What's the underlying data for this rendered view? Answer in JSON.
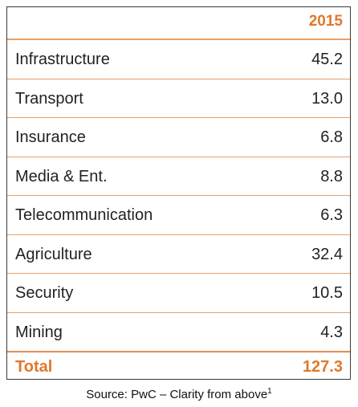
{
  "chart_data": {
    "type": "table",
    "header": {
      "label": "",
      "year": "2015"
    },
    "rows": [
      {
        "label": "Infrastructure",
        "value": "45.2"
      },
      {
        "label": "Transport",
        "value": "13.0"
      },
      {
        "label": "Insurance",
        "value": "6.8"
      },
      {
        "label": "Media & Ent.",
        "value": "8.8"
      },
      {
        "label": "Telecommunication",
        "value": "6.3"
      },
      {
        "label": "Agriculture",
        "value": "32.4"
      },
      {
        "label": "Security",
        "value": "10.5"
      },
      {
        "label": "Mining",
        "value": "4.3"
      }
    ],
    "total": {
      "label": "Total",
      "value": "127.3"
    },
    "colors": {
      "accent": "#e0782b",
      "rule": "#e8a06a",
      "text": "#222222"
    }
  },
  "source": {
    "text": "Source: PwC – Clarity from above",
    "footnote": "1"
  }
}
